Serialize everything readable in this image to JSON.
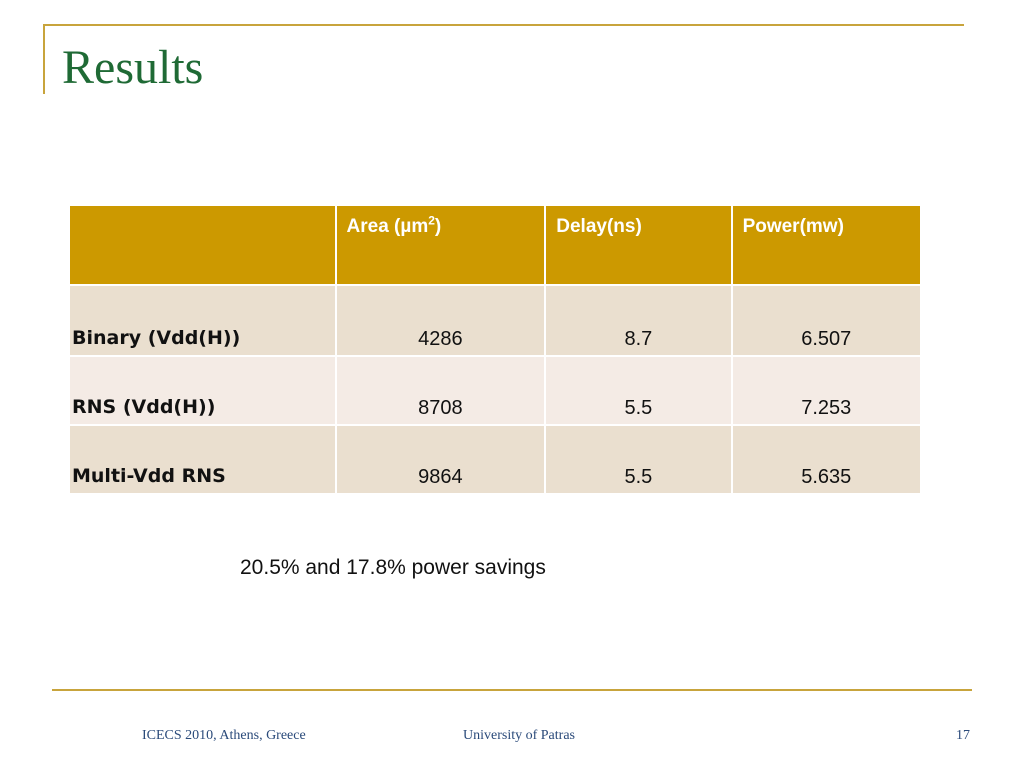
{
  "slide": {
    "title": "Results",
    "note": "20.5% and 17.8% power savings",
    "colors": {
      "accent_gold": "#cc9900",
      "frame_gold": "#c8a43c",
      "title_green": "#1f6a35",
      "row_band_1": "#eadfcf",
      "row_band_2": "#f4ebe5"
    }
  },
  "table": {
    "header": {
      "corner": "",
      "area_prefix": "Area (µm",
      "area_sup": "2",
      "area_suffix": ")",
      "delay": "Delay(ns)",
      "power": "Power(mw)"
    },
    "rows": [
      {
        "label": "Binary (Vdd(H))",
        "area": "4286",
        "delay": "8.7",
        "power": "6.507"
      },
      {
        "label": "RNS (Vdd(H))",
        "area": "8708",
        "delay": "5.5",
        "power": "7.253"
      },
      {
        "label": "Multi-Vdd RNS",
        "area": "9864",
        "delay": "5.5",
        "power": "5.635"
      }
    ]
  },
  "footer": {
    "left": "ICECS 2010, Athens, Greece",
    "center": "University of Patras",
    "page_number": "17"
  }
}
